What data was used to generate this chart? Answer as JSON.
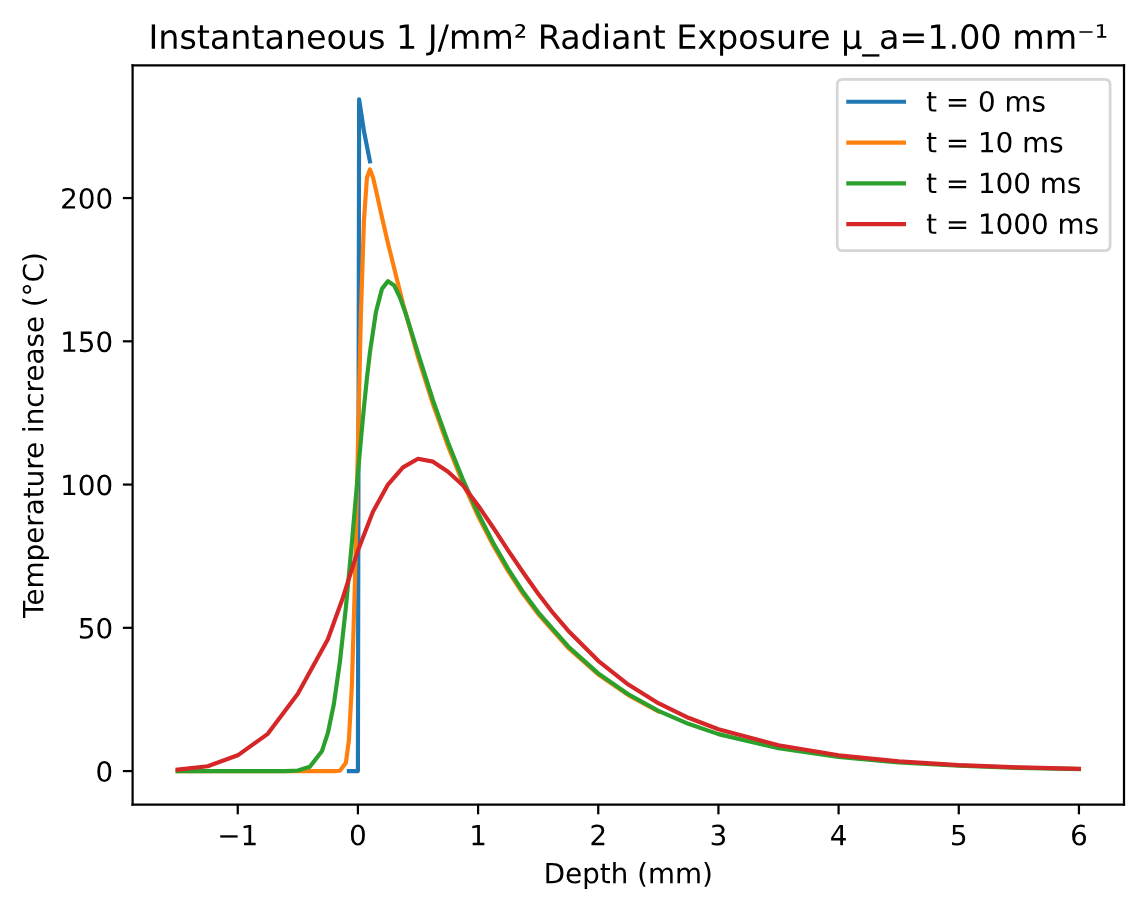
{
  "chart_data": {
    "type": "line",
    "title": "Instantaneous 1 J/mm² Radiant Exposure μ_a=1.00 mm⁻¹",
    "xlabel": "Depth (mm)",
    "ylabel": "Temperature increase (°C)",
    "xlim": [
      -1.875,
      6.375
    ],
    "ylim": [
      -11.7,
      246.3
    ],
    "xticks": [
      {
        "value": -1,
        "label": "−1"
      },
      0,
      1,
      2,
      3,
      4,
      5,
      6
    ],
    "yticks": [
      0,
      50,
      100,
      150,
      200
    ],
    "legend": "top right",
    "series": [
      {
        "name": "t = 0 ms",
        "color": "#1f77b4",
        "x": [
          -0.075,
          0,
          0.01,
          0.05,
          0.1
        ],
        "values": [
          0,
          0,
          234.5,
          223.4,
          212.8
        ]
      },
      {
        "name": "t = 10 ms",
        "color": "#ff7f0e",
        "x": [
          -1.5,
          -0.2,
          -0.15,
          -0.1,
          -0.075,
          -0.05,
          -0.025,
          0,
          0.025,
          0.05,
          0.075,
          0.1,
          0.125,
          0.15,
          0.2,
          0.25,
          0.375,
          0.5,
          0.625,
          0.75,
          0.875,
          1,
          1.125,
          1.25,
          1.375,
          1.5,
          1.75,
          2,
          2.25,
          2.5
        ],
        "values": [
          0,
          0,
          0.1,
          2.9,
          10.8,
          30.2,
          65.8,
          113.3,
          159.7,
          192.0,
          207.1,
          210.0,
          207.3,
          202.8,
          193.3,
          184.2,
          163.2,
          144.5,
          128.0,
          113.4,
          100.5,
          89.0,
          78.8,
          69.8,
          61.8,
          54.8,
          43.0,
          33.7,
          26.5,
          20.8
        ]
      },
      {
        "name": "t = 100 ms",
        "color": "#2ca02c",
        "x": [
          -1.5,
          -0.6,
          -0.5,
          -0.4,
          -0.3,
          -0.25,
          -0.2,
          -0.15,
          -0.1,
          -0.05,
          0,
          0.025,
          0.05,
          0.075,
          0.1,
          0.15,
          0.2,
          0.25,
          0.3,
          0.35,
          0.4,
          0.5,
          0.625,
          0.75,
          0.875,
          1,
          1.125,
          1.25,
          1.375,
          1.5,
          1.75,
          2,
          2.25,
          2.5,
          2.75,
          3,
          3.5,
          4,
          4.5,
          5,
          5.5,
          6
        ],
        "values": [
          0,
          0,
          0.2,
          1.5,
          6.9,
          13.3,
          23.4,
          38.1,
          57.2,
          79.8,
          103.9,
          115.7,
          126.9,
          137.1,
          146.2,
          160.2,
          168.3,
          171.0,
          169.6,
          165.3,
          159.4,
          145.9,
          129.4,
          114.7,
          101.6,
          90.0,
          79.7,
          70.6,
          62.5,
          55.4,
          43.5,
          34.1,
          26.8,
          21.0,
          16.5,
          12.9,
          8.0,
          4.9,
          3.0,
          1.9,
          1.1,
          0.7
        ]
      },
      {
        "name": "t = 1000 ms",
        "color": "#d62728",
        "x": [
          -1.5,
          -1.25,
          -1,
          -0.75,
          -0.5,
          -0.25,
          -0.125,
          0,
          0.125,
          0.25,
          0.375,
          0.5,
          0.625,
          0.75,
          0.875,
          1,
          1.125,
          1.25,
          1.375,
          1.5,
          1.625,
          1.75,
          2,
          2.25,
          2.5,
          2.75,
          3,
          3.5,
          4,
          4.5,
          5,
          5.5,
          6
        ],
        "values": [
          0.5,
          1.7,
          5.5,
          13.0,
          27.0,
          46.0,
          60.5,
          77.0,
          90.5,
          100.0,
          106.0,
          109.0,
          108.0,
          104.5,
          99.7,
          92.7,
          85.0,
          77.0,
          69.3,
          61.9,
          55.1,
          49.0,
          38.5,
          30.2,
          23.7,
          18.6,
          14.6,
          9.0,
          5.5,
          3.4,
          2.1,
          1.3,
          0.8
        ]
      }
    ]
  }
}
